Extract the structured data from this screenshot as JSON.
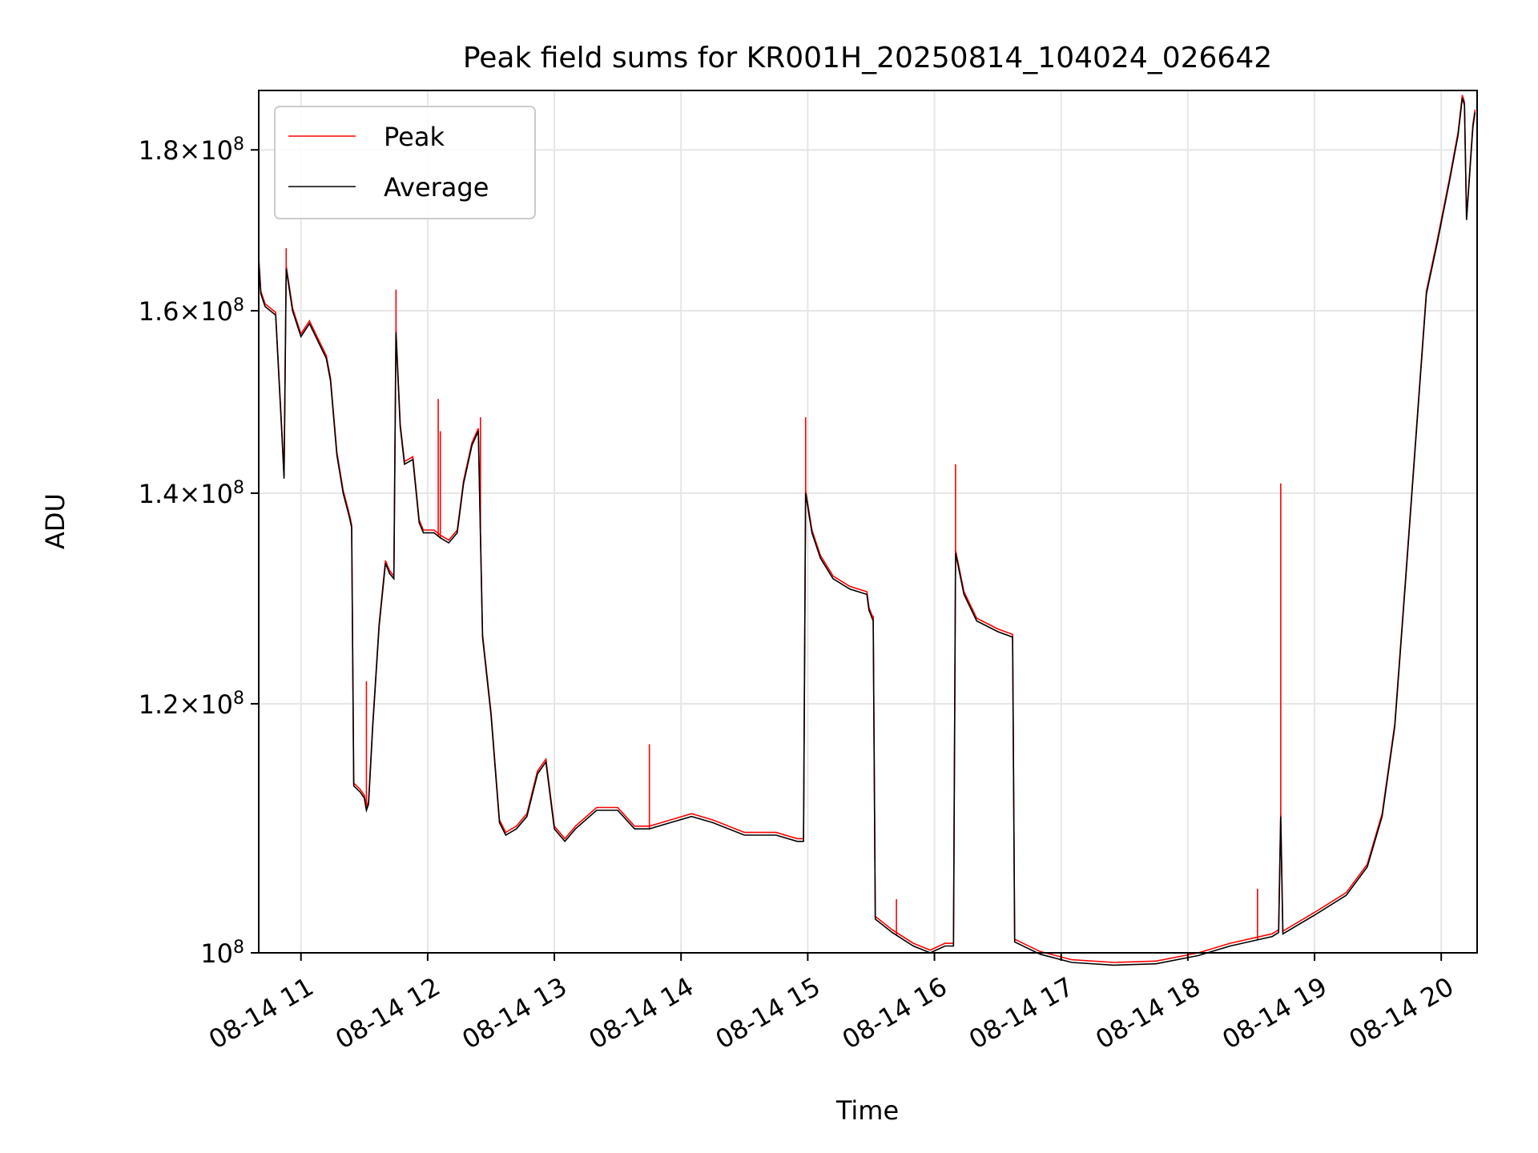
{
  "chart_data": {
    "type": "line",
    "title": "Peak field sums for KR001H_20250814_104024_026642",
    "xlabel": "Time",
    "ylabel": "ADU",
    "yscale": "log",
    "grid": true,
    "legend_position": "top-left",
    "xlim": [
      "2025-08-14 10:40",
      "2025-08-14 20:17"
    ],
    "ylim": [
      100000000,
      188000000
    ],
    "x_ticks": [
      {
        "x": "2025-08-14 11:00",
        "label": "08-14 11"
      },
      {
        "x": "2025-08-14 12:00",
        "label": "08-14 12"
      },
      {
        "x": "2025-08-14 13:00",
        "label": "08-14 13"
      },
      {
        "x": "2025-08-14 14:00",
        "label": "08-14 14"
      },
      {
        "x": "2025-08-14 15:00",
        "label": "08-14 15"
      },
      {
        "x": "2025-08-14 16:00",
        "label": "08-14 16"
      },
      {
        "x": "2025-08-14 17:00",
        "label": "08-14 17"
      },
      {
        "x": "2025-08-14 18:00",
        "label": "08-14 18"
      },
      {
        "x": "2025-08-14 19:00",
        "label": "08-14 19"
      },
      {
        "x": "2025-08-14 20:00",
        "label": "08-14 20"
      }
    ],
    "y_ticks": [
      {
        "y": 100000000,
        "mant": "",
        "exp": "8"
      },
      {
        "y": 120000000,
        "mant": "1.2",
        "exp": "8"
      },
      {
        "y": 140000000,
        "mant": "1.4",
        "exp": "8"
      },
      {
        "y": 160000000,
        "mant": "1.6",
        "exp": "8"
      },
      {
        "y": 180000000,
        "mant": "1.8",
        "exp": "8"
      }
    ],
    "series": [
      {
        "name": "Peak",
        "color": "#ff0000"
      },
      {
        "name": "Average",
        "color": "#000000"
      }
    ],
    "average": [
      [
        "2025-08-14 10:40",
        166000000
      ],
      [
        "2025-08-14 10:41",
        162000000
      ],
      [
        "2025-08-14 10:43",
        160500000
      ],
      [
        "2025-08-14 10:48",
        159500000
      ],
      [
        "2025-08-14 10:51",
        146000000
      ],
      [
        "2025-08-14 10:52",
        141500000
      ],
      [
        "2025-08-14 10:53",
        165000000
      ],
      [
        "2025-08-14 10:56",
        160000000
      ],
      [
        "2025-08-14 11:00",
        157000000
      ],
      [
        "2025-08-14 11:04",
        158500000
      ],
      [
        "2025-08-14 11:09",
        156000000
      ],
      [
        "2025-08-14 11:12",
        154500000
      ],
      [
        "2025-08-14 11:14",
        152000000
      ],
      [
        "2025-08-14 11:17",
        144000000
      ],
      [
        "2025-08-14 11:20",
        140000000
      ],
      [
        "2025-08-14 11:23",
        137500000
      ],
      [
        "2025-08-14 11:24",
        136500000
      ],
      [
        "2025-08-14 11:25",
        113000000
      ],
      [
        "2025-08-14 11:28",
        112500000
      ],
      [
        "2025-08-14 11:30",
        112000000
      ],
      [
        "2025-08-14 11:31",
        111000000
      ],
      [
        "2025-08-14 11:32",
        111500000
      ],
      [
        "2025-08-14 11:34",
        118000000
      ],
      [
        "2025-08-14 11:37",
        127000000
      ],
      [
        "2025-08-14 11:40",
        133000000
      ],
      [
        "2025-08-14 11:42",
        132000000
      ],
      [
        "2025-08-14 11:44",
        131500000
      ],
      [
        "2025-08-14 11:45",
        157500000
      ],
      [
        "2025-08-14 11:47",
        147000000
      ],
      [
        "2025-08-14 11:49",
        143000000
      ],
      [
        "2025-08-14 11:53",
        143500000
      ],
      [
        "2025-08-14 11:56",
        137000000
      ],
      [
        "2025-08-14 11:58",
        136000000
      ],
      [
        "2025-08-14 12:03",
        136000000
      ],
      [
        "2025-08-14 12:06",
        135500000
      ],
      [
        "2025-08-14 12:10",
        135000000
      ],
      [
        "2025-08-14 12:14",
        136000000
      ],
      [
        "2025-08-14 12:17",
        141000000
      ],
      [
        "2025-08-14 12:21",
        145000000
      ],
      [
        "2025-08-14 12:24",
        146500000
      ],
      [
        "2025-08-14 12:26",
        126000000
      ],
      [
        "2025-08-14 12:30",
        119000000
      ],
      [
        "2025-08-14 12:34",
        110000000
      ],
      [
        "2025-08-14 12:37",
        109000000
      ],
      [
        "2025-08-14 12:42",
        109500000
      ],
      [
        "2025-08-14 12:47",
        110500000
      ],
      [
        "2025-08-14 12:52",
        114000000
      ],
      [
        "2025-08-14 12:56",
        115000000
      ],
      [
        "2025-08-14 13:00",
        109500000
      ],
      [
        "2025-08-14 13:05",
        108500000
      ],
      [
        "2025-08-14 13:10",
        109500000
      ],
      [
        "2025-08-14 13:20",
        111000000
      ],
      [
        "2025-08-14 13:30",
        111000000
      ],
      [
        "2025-08-14 13:38",
        109500000
      ],
      [
        "2025-08-14 13:45",
        109500000
      ],
      [
        "2025-08-14 13:55",
        110000000
      ],
      [
        "2025-08-14 14:05",
        110500000
      ],
      [
        "2025-08-14 14:15",
        110000000
      ],
      [
        "2025-08-14 14:30",
        109000000
      ],
      [
        "2025-08-14 14:45",
        109000000
      ],
      [
        "2025-08-14 14:55",
        108500000
      ],
      [
        "2025-08-14 14:58",
        108500000
      ],
      [
        "2025-08-14 14:59",
        140000000
      ],
      [
        "2025-08-14 15:02",
        136000000
      ],
      [
        "2025-08-14 15:06",
        133500000
      ],
      [
        "2025-08-14 15:12",
        131500000
      ],
      [
        "2025-08-14 15:20",
        130500000
      ],
      [
        "2025-08-14 15:28",
        130000000
      ],
      [
        "2025-08-14 15:29",
        128500000
      ],
      [
        "2025-08-14 15:31",
        127500000
      ],
      [
        "2025-08-14 15:32",
        102500000
      ],
      [
        "2025-08-14 15:40",
        101500000
      ],
      [
        "2025-08-14 15:50",
        100500000
      ],
      [
        "2025-08-14 15:58",
        100000000
      ],
      [
        "2025-08-14 16:05",
        100500000
      ],
      [
        "2025-08-14 16:09",
        100500000
      ],
      [
        "2025-08-14 16:10",
        134000000
      ],
      [
        "2025-08-14 16:14",
        130000000
      ],
      [
        "2025-08-14 16:20",
        127500000
      ],
      [
        "2025-08-14 16:30",
        126500000
      ],
      [
        "2025-08-14 16:37",
        126000000
      ],
      [
        "2025-08-14 16:38",
        100800000
      ],
      [
        "2025-08-14 16:50",
        99900000
      ],
      [
        "2025-08-14 17:05",
        99300000
      ],
      [
        "2025-08-14 17:25",
        99100000
      ],
      [
        "2025-08-14 17:45",
        99200000
      ],
      [
        "2025-08-14 18:05",
        99800000
      ],
      [
        "2025-08-14 18:20",
        100500000
      ],
      [
        "2025-08-14 18:40",
        101200000
      ],
      [
        "2025-08-14 18:43",
        101500000
      ],
      [
        "2025-08-14 18:44",
        110500000
      ],
      [
        "2025-08-14 18:45",
        101400000
      ],
      [
        "2025-08-14 19:00",
        102800000
      ],
      [
        "2025-08-14 19:15",
        104300000
      ],
      [
        "2025-08-14 19:25",
        106500000
      ],
      [
        "2025-08-14 19:32",
        110500000
      ],
      [
        "2025-08-14 19:38",
        118000000
      ],
      [
        "2025-08-14 19:43",
        131000000
      ],
      [
        "2025-08-14 19:50",
        152000000
      ],
      [
        "2025-08-14 19:53",
        162000000
      ],
      [
        "2025-08-14 19:58",
        168000000
      ],
      [
        "2025-08-14 20:04",
        176000000
      ],
      [
        "2025-08-14 20:08",
        182000000
      ],
      [
        "2025-08-14 20:10",
        187000000
      ],
      [
        "2025-08-14 20:11",
        186000000
      ],
      [
        "2025-08-14 20:12",
        171000000
      ],
      [
        "2025-08-14 20:15",
        183000000
      ],
      [
        "2025-08-14 20:16",
        185000000
      ]
    ],
    "peak_spikes": [
      [
        "2025-08-14 10:40",
        167000000
      ],
      [
        "2025-08-14 10:53",
        167500000
      ],
      [
        "2025-08-14 11:31",
        122000000
      ],
      [
        "2025-08-14 11:45",
        162500000
      ],
      [
        "2025-08-14 12:05",
        150000000
      ],
      [
        "2025-08-14 12:06",
        146500000
      ],
      [
        "2025-08-14 12:25",
        148000000
      ],
      [
        "2025-08-14 13:45",
        116500000
      ],
      [
        "2025-08-14 14:59",
        148000000
      ],
      [
        "2025-08-14 15:31",
        128000000
      ],
      [
        "2025-08-14 15:42",
        104000000
      ],
      [
        "2025-08-14 16:10",
        143000000
      ],
      [
        "2025-08-14 18:33",
        104800000
      ],
      [
        "2025-08-14 18:44",
        141000000
      ]
    ]
  }
}
